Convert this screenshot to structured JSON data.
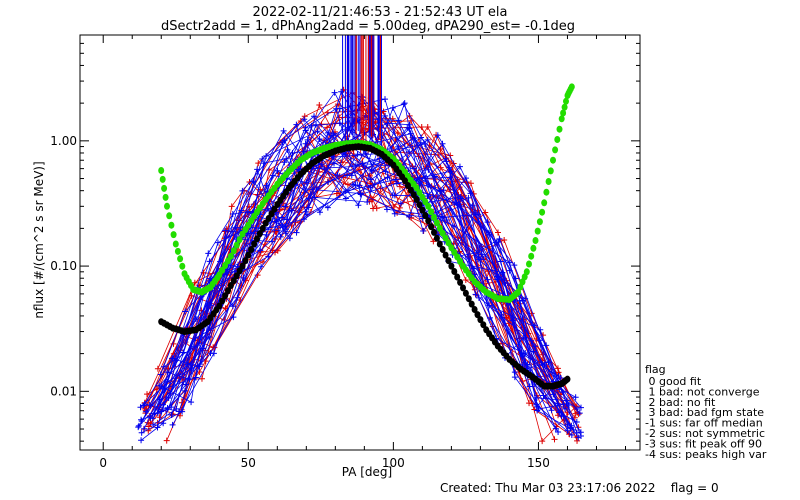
{
  "chart_data": {
    "type": "line",
    "title": "2022-02-11/21:46:53 - 21:52:43 UT ela",
    "subtitle": "dSectr2add = 1, dPhAng2add = 5.00deg, dPA290_est=  -0.1deg",
    "xlabel": "PA [deg]",
    "ylabel": "nflux [#/(cm^2 s sr MeV)]",
    "xlim": [
      -8,
      185
    ],
    "ylim": [
      0.0034,
      7.0
    ],
    "y_scale": "log",
    "x_ticks": [
      "0",
      "50",
      "100",
      "150"
    ],
    "y_ticks": [
      "0.01",
      "0.10",
      "1.00"
    ],
    "grid": false,
    "colors": {
      "red_series": "#dd0000",
      "blue_series": "#0000ee",
      "green_series": "#22dd00",
      "black_series": "#000000"
    },
    "series": [
      {
        "color_key": "green_series",
        "x": [
          20,
          22,
          25,
          28,
          31,
          34,
          37,
          40,
          44,
          48,
          52,
          56,
          60,
          64,
          68,
          72,
          76,
          80,
          84,
          88,
          92,
          96,
          100,
          104,
          108,
          112,
          116,
          120,
          124,
          128,
          132,
          136,
          140,
          143,
          146,
          149,
          152,
          155,
          158,
          160,
          161.5
        ],
        "y": [
          0.58,
          0.3,
          0.15,
          0.087,
          0.065,
          0.062,
          0.068,
          0.085,
          0.12,
          0.18,
          0.25,
          0.34,
          0.45,
          0.57,
          0.7,
          0.8,
          0.87,
          0.92,
          0.95,
          0.96,
          0.93,
          0.85,
          0.72,
          0.56,
          0.42,
          0.3,
          0.2,
          0.14,
          0.1,
          0.075,
          0.062,
          0.055,
          0.054,
          0.062,
          0.09,
          0.16,
          0.32,
          0.7,
          1.5,
          2.3,
          2.7
        ]
      },
      {
        "color_key": "black_series",
        "x": [
          20,
          24,
          28,
          32,
          36,
          40,
          44,
          48,
          52,
          56,
          60,
          64,
          68,
          72,
          76,
          80,
          84,
          88,
          92,
          96,
          100,
          104,
          108,
          112,
          116,
          120,
          124,
          128,
          132,
          136,
          140,
          144,
          148,
          152,
          155,
          158,
          160
        ],
        "y": [
          0.036,
          0.032,
          0.03,
          0.031,
          0.036,
          0.048,
          0.07,
          0.1,
          0.15,
          0.22,
          0.31,
          0.42,
          0.54,
          0.66,
          0.76,
          0.83,
          0.88,
          0.9,
          0.87,
          0.78,
          0.64,
          0.48,
          0.34,
          0.23,
          0.15,
          0.1,
          0.067,
          0.045,
          0.031,
          0.023,
          0.018,
          0.015,
          0.013,
          0.011,
          0.011,
          0.0115,
          0.0125
        ]
      }
    ],
    "legend": {
      "title": "flag",
      "placement": "bottom-right, outside plot",
      "entries": [
        " 0 good fit",
        " 1 bad: not converge",
        " 2 bad: no fit",
        " 3 bad: bad fgm state",
        "-1 sus: far off median",
        "-2 sus: not symmetric",
        "-3 sus: fit peak off 90",
        "-4 sus: peaks high var"
      ]
    },
    "footer": "Created: Thu Mar 03 23:17:06 2022    flag = 0"
  }
}
